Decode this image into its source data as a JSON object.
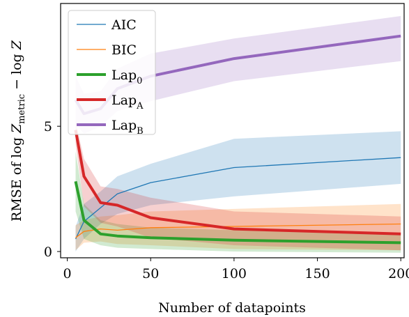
{
  "chart_data": {
    "type": "line",
    "xlabel": "Number of datapoints",
    "ylabel_main": "RMSE of log ",
    "ylabel_z1": "Z",
    "ylabel_sub": "metric",
    "ylabel_rest": " − log ",
    "ylabel_z2": "Z",
    "xlim": [
      -4,
      202
    ],
    "ylim": [
      -0.25,
      9.9
    ],
    "xticks": [
      0,
      50,
      100,
      150,
      200
    ],
    "yticks": [
      0,
      5
    ],
    "grid": false,
    "legend_position": "top-left",
    "series": [
      {
        "name": "AIC",
        "name_base": "AIC",
        "name_sub": "",
        "color": "#1f77b4",
        "width": 1.3,
        "x": [
          5,
          10,
          20,
          30,
          50,
          100,
          200
        ],
        "y": [
          0.5,
          1.2,
          1.75,
          2.3,
          2.75,
          3.35,
          3.75
        ],
        "lower": [
          0.0,
          0.5,
          1.1,
          1.5,
          1.85,
          2.2,
          2.7
        ],
        "upper": [
          1.0,
          1.9,
          2.4,
          3.0,
          3.5,
          4.5,
          4.8
        ]
      },
      {
        "name": "BIC",
        "name_base": "BIC",
        "name_sub": "",
        "color": "#ff7f0e",
        "width": 1.3,
        "x": [
          5,
          10,
          20,
          30,
          50,
          100,
          200
        ],
        "y": [
          0.55,
          0.8,
          0.9,
          0.85,
          0.95,
          1.0,
          1.1
        ],
        "lower": [
          0.05,
          0.35,
          0.4,
          0.3,
          0.25,
          0.1,
          0.05
        ],
        "upper": [
          1.05,
          1.25,
          1.4,
          1.45,
          1.6,
          1.7,
          1.9
        ]
      },
      {
        "name": "Lap0",
        "name_base": "Lap",
        "name_sub": "0",
        "color": "#2ca02c",
        "width": 4,
        "x": [
          5,
          10,
          20,
          30,
          50,
          100,
          200
        ],
        "y": [
          2.8,
          1.25,
          0.7,
          0.62,
          0.55,
          0.45,
          0.35
        ],
        "lower": [
          1.6,
          0.5,
          0.25,
          0.15,
          0.1,
          0.0,
          -0.05
        ],
        "upper": [
          4.0,
          1.9,
          1.25,
          1.1,
          0.95,
          0.85,
          0.75
        ]
      },
      {
        "name": "LapA",
        "name_base": "Lap",
        "name_sub": "A",
        "color": "#d62728",
        "width": 4,
        "x": [
          5,
          10,
          20,
          30,
          50,
          100,
          200
        ],
        "y": [
          4.85,
          3.0,
          1.95,
          1.85,
          1.35,
          0.9,
          0.7
        ],
        "lower": [
          4.3,
          1.8,
          1.15,
          1.0,
          0.55,
          0.25,
          0.05
        ],
        "upper": [
          5.2,
          3.7,
          2.6,
          2.5,
          2.15,
          1.6,
          1.4
        ]
      },
      {
        "name": "LapB",
        "name_base": "Lap",
        "name_sub": "B",
        "color": "#9467bd",
        "width": 4,
        "x": [
          5,
          10,
          20,
          30,
          50,
          100,
          200
        ],
        "y": [
          6.05,
          5.5,
          5.7,
          6.5,
          7.0,
          7.7,
          8.6
        ],
        "lower": [
          5.1,
          4.7,
          5.0,
          5.6,
          6.0,
          6.8,
          7.6
        ],
        "upper": [
          7.0,
          6.3,
          6.4,
          7.3,
          7.9,
          8.5,
          9.4
        ]
      }
    ]
  }
}
